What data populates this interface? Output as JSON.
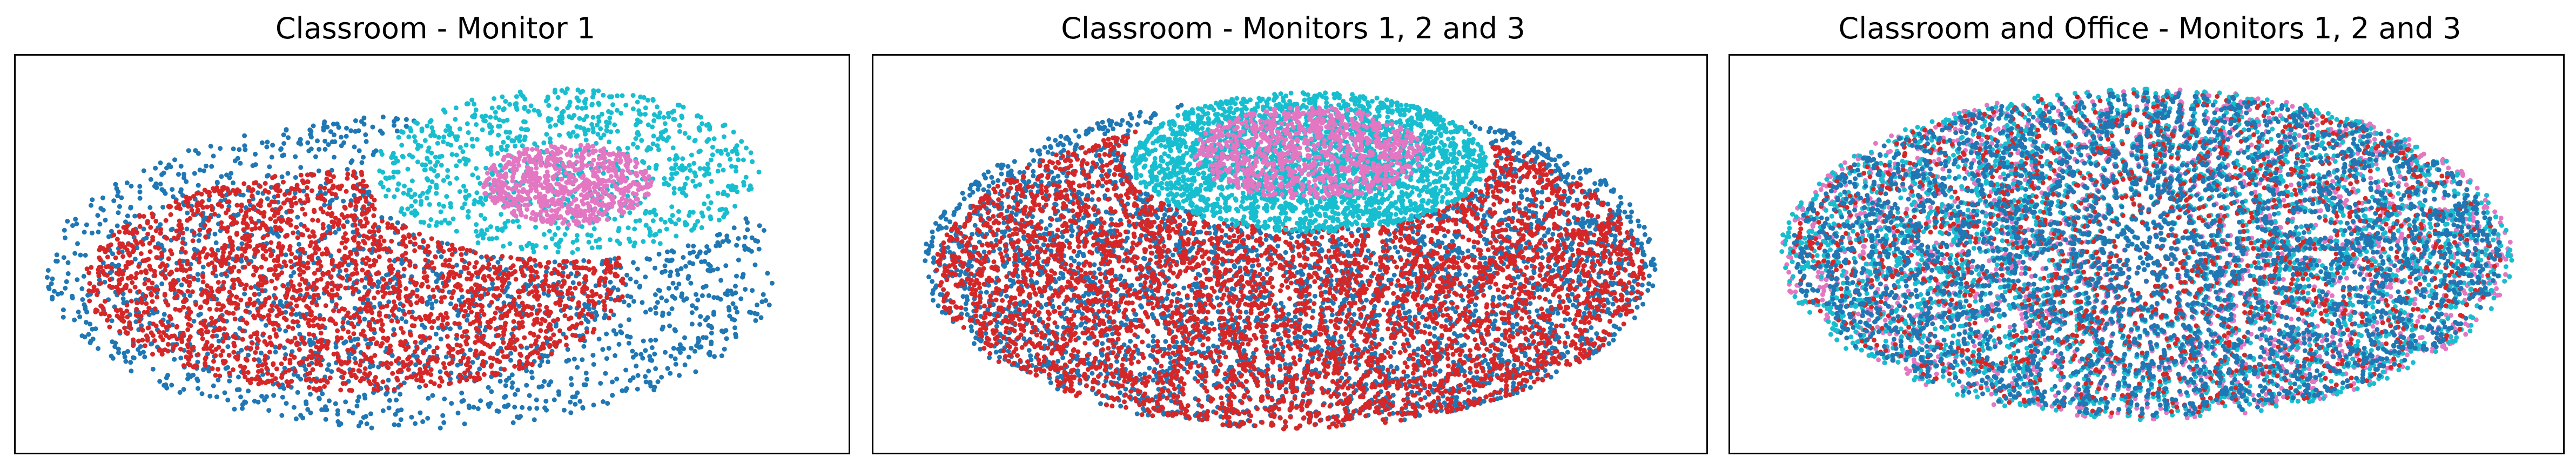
{
  "colors": {
    "blue": "#1f77b4",
    "red": "#d62728",
    "cyan": "#17becf",
    "pink": "#e377c2",
    "frame": "#000000"
  },
  "chart_data": [
    {
      "type": "scatter",
      "title": "Classroom - Monitor 1",
      "xlabel": "",
      "ylabel": "",
      "axes_ticks": "none",
      "grid": false,
      "series": [
        {
          "color": "#1f77b4",
          "shape": "ellipse",
          "cx": -0.05,
          "cy": -0.1,
          "rx": 0.95,
          "ry": 0.85,
          "n": 2200,
          "hole": "top-right"
        },
        {
          "color": "#d62728",
          "shape": "ellipse",
          "cx": -0.2,
          "cy": -0.15,
          "rx": 0.7,
          "ry": 0.6,
          "n": 2600,
          "hole": "top-right"
        },
        {
          "color": "#17becf",
          "shape": "ellipse",
          "cx": 0.35,
          "cy": 0.45,
          "rx": 0.5,
          "ry": 0.45,
          "n": 900
        },
        {
          "color": "#e377c2",
          "shape": "ellipse",
          "cx": 0.35,
          "cy": 0.38,
          "rx": 0.22,
          "ry": 0.22,
          "n": 700
        }
      ]
    },
    {
      "type": "scatter",
      "title": "Classroom - Monitors 1, 2 and 3",
      "xlabel": "",
      "ylabel": "",
      "axes_ticks": "none",
      "grid": false,
      "series": [
        {
          "color": "#1f77b4",
          "shape": "ellipse",
          "cx": 0.0,
          "cy": -0.05,
          "rx": 0.95,
          "ry": 0.9,
          "n": 4500,
          "hole": "top-center"
        },
        {
          "color": "#d62728",
          "shape": "ellipse",
          "cx": 0.0,
          "cy": -0.1,
          "rx": 0.92,
          "ry": 0.85,
          "n": 5500,
          "hole": "top-center"
        },
        {
          "color": "#17becf",
          "shape": "ellipse",
          "cx": 0.05,
          "cy": 0.5,
          "rx": 0.46,
          "ry": 0.38,
          "n": 2500
        },
        {
          "color": "#e377c2",
          "shape": "ellipse",
          "cx": 0.05,
          "cy": 0.55,
          "rx": 0.3,
          "ry": 0.25,
          "n": 900
        }
      ]
    },
    {
      "type": "scatter",
      "title": "Classroom and Office - Monitors 1, 2 and 3",
      "xlabel": "",
      "ylabel": "",
      "axes_ticks": "none",
      "grid": false,
      "series": [
        {
          "color": "#e377c2",
          "shape": "ellipse",
          "cx": 0.0,
          "cy": 0.0,
          "rx": 0.95,
          "ry": 0.9,
          "n": 3200
        },
        {
          "color": "#17becf",
          "shape": "ellipse",
          "cx": 0.0,
          "cy": 0.0,
          "rx": 0.95,
          "ry": 0.9,
          "n": 3200
        },
        {
          "color": "#d62728",
          "shape": "ellipse",
          "cx": 0.0,
          "cy": 0.0,
          "rx": 0.92,
          "ry": 0.88,
          "n": 3600
        },
        {
          "color": "#1f77b4",
          "shape": "ellipse",
          "cx": 0.0,
          "cy": 0.0,
          "rx": 0.92,
          "ry": 0.88,
          "n": 3600
        }
      ]
    }
  ]
}
